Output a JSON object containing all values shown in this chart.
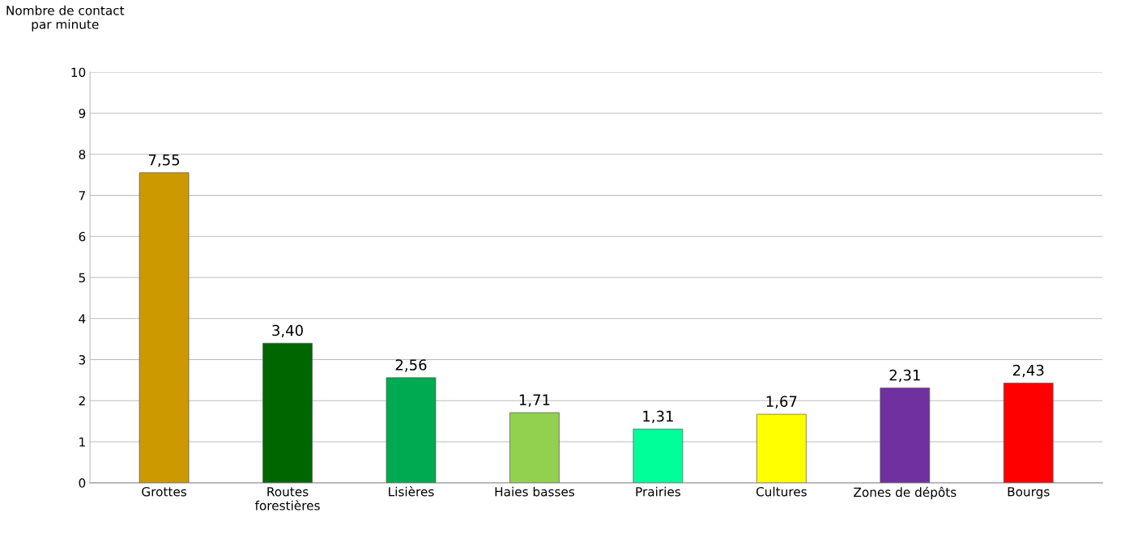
{
  "chart_data": {
    "type": "bar",
    "ylabel": "Nombre de contact\npar minute",
    "categories": [
      "Grottes",
      "Routes\nforestières",
      "Lisières",
      "Haies basses",
      "Prairies",
      "Cultures",
      "Zones de dépôts",
      "Bourgs"
    ],
    "values": [
      7.55,
      3.4,
      2.56,
      1.71,
      1.31,
      1.67,
      2.31,
      2.43
    ],
    "value_labels": [
      "7,55",
      "3,40",
      "2,56",
      "1,71",
      "1,31",
      "1,67",
      "2,31",
      "2,43"
    ],
    "colors": [
      "#cc9900",
      "#006600",
      "#00aa50",
      "#92d050",
      "#00ff99",
      "#ffff00",
      "#7030a0",
      "#ff0000"
    ],
    "ylim": [
      0,
      10
    ],
    "yticks": [
      0,
      1,
      2,
      3,
      4,
      5,
      6,
      7,
      8,
      9,
      10
    ],
    "grid": "y"
  }
}
